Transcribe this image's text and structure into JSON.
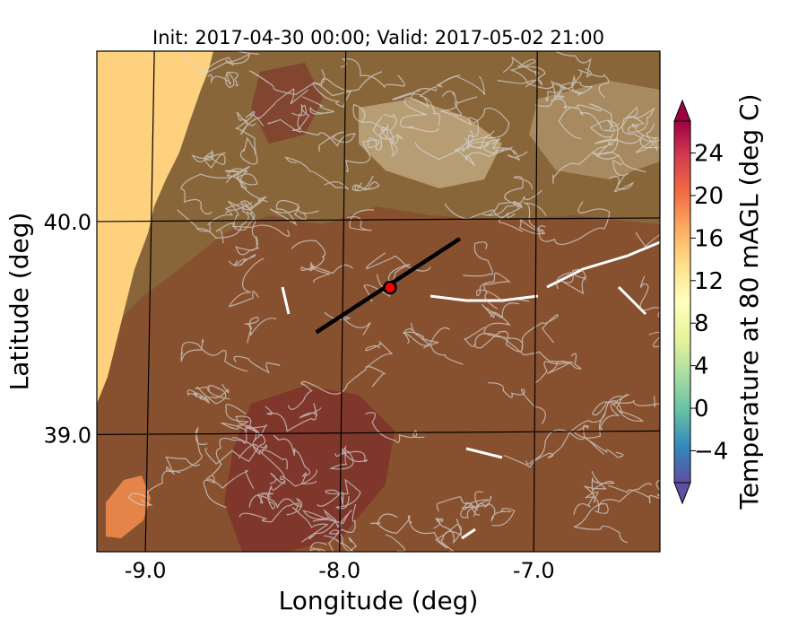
{
  "title": "Init: 2017-04-30 00:00; Valid: 2017-05-02 21:00",
  "xlabel": "Longitude (deg)",
  "ylabel": "Latitude (deg)",
  "colorbar": {
    "label": "Temperature at 80 mAGL (deg C)",
    "ticks": [
      "−4",
      "0",
      "4",
      "8",
      "12",
      "16",
      "20",
      "24"
    ],
    "tick_values": [
      -4,
      0,
      4,
      8,
      12,
      16,
      20,
      24
    ],
    "range": [
      -7,
      27
    ],
    "extend": "both",
    "colormap": "Spectral_r"
  },
  "map": {
    "x_ticks": [
      "-9.0",
      "-8.0",
      "-7.0"
    ],
    "x_tick_values": [
      -9.0,
      -8.0,
      -7.0
    ],
    "y_ticks": [
      "40.0",
      "39.0"
    ],
    "y_tick_values": [
      40.0,
      39.0
    ],
    "lon_range": [
      -9.25,
      -6.35
    ],
    "lat_range": [
      38.45,
      40.8
    ],
    "transect": {
      "start": [
        -8.12,
        39.48
      ],
      "end": [
        -7.38,
        39.92
      ]
    },
    "marker": {
      "lon": -7.74,
      "lat": 39.69,
      "color": "#ff0000"
    },
    "colors": {
      "ocean": "#fdd17e",
      "land_base": "#87512f",
      "land_warm": "#7b2f2a",
      "land_cool": "#8a6a3c",
      "highland": "#cbb58d",
      "coast_warm": "#f08a4b",
      "contour": "#d9d9d9",
      "grid": "#000000"
    }
  }
}
